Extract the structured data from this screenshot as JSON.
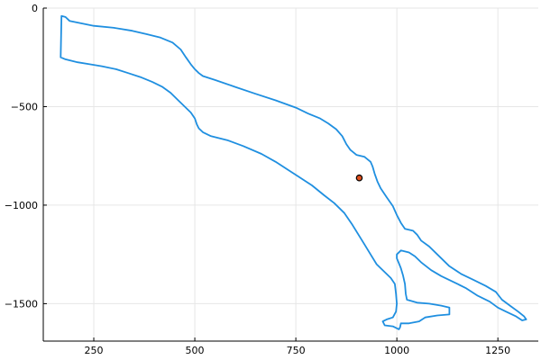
{
  "colors": {
    "outline": "#1f8fe0",
    "marker_fill": "#e0501e",
    "marker_edge": "#000000"
  },
  "chart_data": {
    "type": "line",
    "title": "",
    "xlabel": "",
    "ylabel": "",
    "xlim": [
      125,
      1350
    ],
    "ylim": [
      -1690,
      0
    ],
    "grid": true,
    "legend": "none",
    "xticks": [
      250,
      500,
      750,
      1000,
      1250
    ],
    "xtick_labels": [
      "250",
      "500",
      "750",
      "1000",
      "1250"
    ],
    "yticks": [
      0,
      -500,
      -1000,
      -1500
    ],
    "ytick_labels": [
      "0",
      "−500",
      "−1000",
      "−1500"
    ],
    "outline": [
      [
        170,
        -40
      ],
      [
        180,
        -45
      ],
      [
        190,
        -65
      ],
      [
        250,
        -90
      ],
      [
        300,
        -100
      ],
      [
        345,
        -115
      ],
      [
        380,
        -132
      ],
      [
        415,
        -150
      ],
      [
        445,
        -175
      ],
      [
        465,
        -210
      ],
      [
        478,
        -250
      ],
      [
        490,
        -285
      ],
      [
        500,
        -310
      ],
      [
        510,
        -330
      ],
      [
        520,
        -345
      ],
      [
        550,
        -365
      ],
      [
        600,
        -400
      ],
      [
        650,
        -435
      ],
      [
        700,
        -468
      ],
      [
        750,
        -505
      ],
      [
        780,
        -535
      ],
      [
        810,
        -560
      ],
      [
        830,
        -585
      ],
      [
        850,
        -615
      ],
      [
        865,
        -650
      ],
      [
        875,
        -690
      ],
      [
        885,
        -720
      ],
      [
        900,
        -745
      ],
      [
        920,
        -755
      ],
      [
        935,
        -780
      ],
      [
        940,
        -805
      ],
      [
        945,
        -840
      ],
      [
        952,
        -880
      ],
      [
        960,
        -915
      ],
      [
        975,
        -960
      ],
      [
        990,
        -1005
      ],
      [
        1000,
        -1050
      ],
      [
        1010,
        -1090
      ],
      [
        1020,
        -1120
      ],
      [
        1040,
        -1130
      ],
      [
        1050,
        -1150
      ],
      [
        1060,
        -1180
      ],
      [
        1080,
        -1210
      ],
      [
        1100,
        -1250
      ],
      [
        1130,
        -1310
      ],
      [
        1160,
        -1350
      ],
      [
        1190,
        -1380
      ],
      [
        1220,
        -1410
      ],
      [
        1245,
        -1440
      ],
      [
        1260,
        -1480
      ],
      [
        1280,
        -1510
      ],
      [
        1300,
        -1540
      ],
      [
        1315,
        -1565
      ],
      [
        1320,
        -1580
      ],
      [
        1310,
        -1585
      ],
      [
        1295,
        -1565
      ],
      [
        1270,
        -1540
      ],
      [
        1250,
        -1520
      ],
      [
        1230,
        -1490
      ],
      [
        1200,
        -1460
      ],
      [
        1170,
        -1420
      ],
      [
        1140,
        -1390
      ],
      [
        1110,
        -1360
      ],
      [
        1085,
        -1330
      ],
      [
        1060,
        -1290
      ],
      [
        1045,
        -1260
      ],
      [
        1030,
        -1240
      ],
      [
        1010,
        -1230
      ],
      [
        1000,
        -1250
      ],
      [
        1000,
        -1270
      ],
      [
        1005,
        -1295
      ],
      [
        1010,
        -1320
      ],
      [
        1015,
        -1355
      ],
      [
        1020,
        -1400
      ],
      [
        1022,
        -1450
      ],
      [
        1025,
        -1480
      ],
      [
        1050,
        -1495
      ],
      [
        1080,
        -1500
      ],
      [
        1110,
        -1510
      ],
      [
        1130,
        -1520
      ],
      [
        1130,
        -1555
      ],
      [
        1100,
        -1560
      ],
      [
        1070,
        -1570
      ],
      [
        1055,
        -1590
      ],
      [
        1030,
        -1600
      ],
      [
        1010,
        -1600
      ],
      [
        1008,
        -1620
      ],
      [
        1005,
        -1630
      ],
      [
        990,
        -1615
      ],
      [
        970,
        -1610
      ],
      [
        965,
        -1590
      ],
      [
        975,
        -1580
      ],
      [
        990,
        -1570
      ],
      [
        998,
        -1540
      ],
      [
        1000,
        -1500
      ],
      [
        998,
        -1450
      ],
      [
        995,
        -1400
      ],
      [
        985,
        -1370
      ],
      [
        970,
        -1340
      ],
      [
        950,
        -1300
      ],
      [
        935,
        -1250
      ],
      [
        920,
        -1200
      ],
      [
        905,
        -1150
      ],
      [
        890,
        -1100
      ],
      [
        870,
        -1040
      ],
      [
        845,
        -990
      ],
      [
        820,
        -950
      ],
      [
        790,
        -900
      ],
      [
        760,
        -860
      ],
      [
        730,
        -820
      ],
      [
        700,
        -780
      ],
      [
        665,
        -740
      ],
      [
        620,
        -700
      ],
      [
        580,
        -670
      ],
      [
        540,
        -650
      ],
      [
        520,
        -630
      ],
      [
        510,
        -610
      ],
      [
        505,
        -590
      ],
      [
        500,
        -560
      ],
      [
        490,
        -530
      ],
      [
        475,
        -500
      ],
      [
        460,
        -470
      ],
      [
        440,
        -430
      ],
      [
        420,
        -400
      ],
      [
        395,
        -375
      ],
      [
        365,
        -350
      ],
      [
        335,
        -330
      ],
      [
        305,
        -310
      ],
      [
        270,
        -295
      ],
      [
        240,
        -285
      ],
      [
        210,
        -275
      ],
      [
        180,
        -260
      ],
      [
        168,
        -250
      ],
      [
        170,
        -40
      ]
    ],
    "points": [
      {
        "x": 907,
        "y": -862
      }
    ]
  }
}
